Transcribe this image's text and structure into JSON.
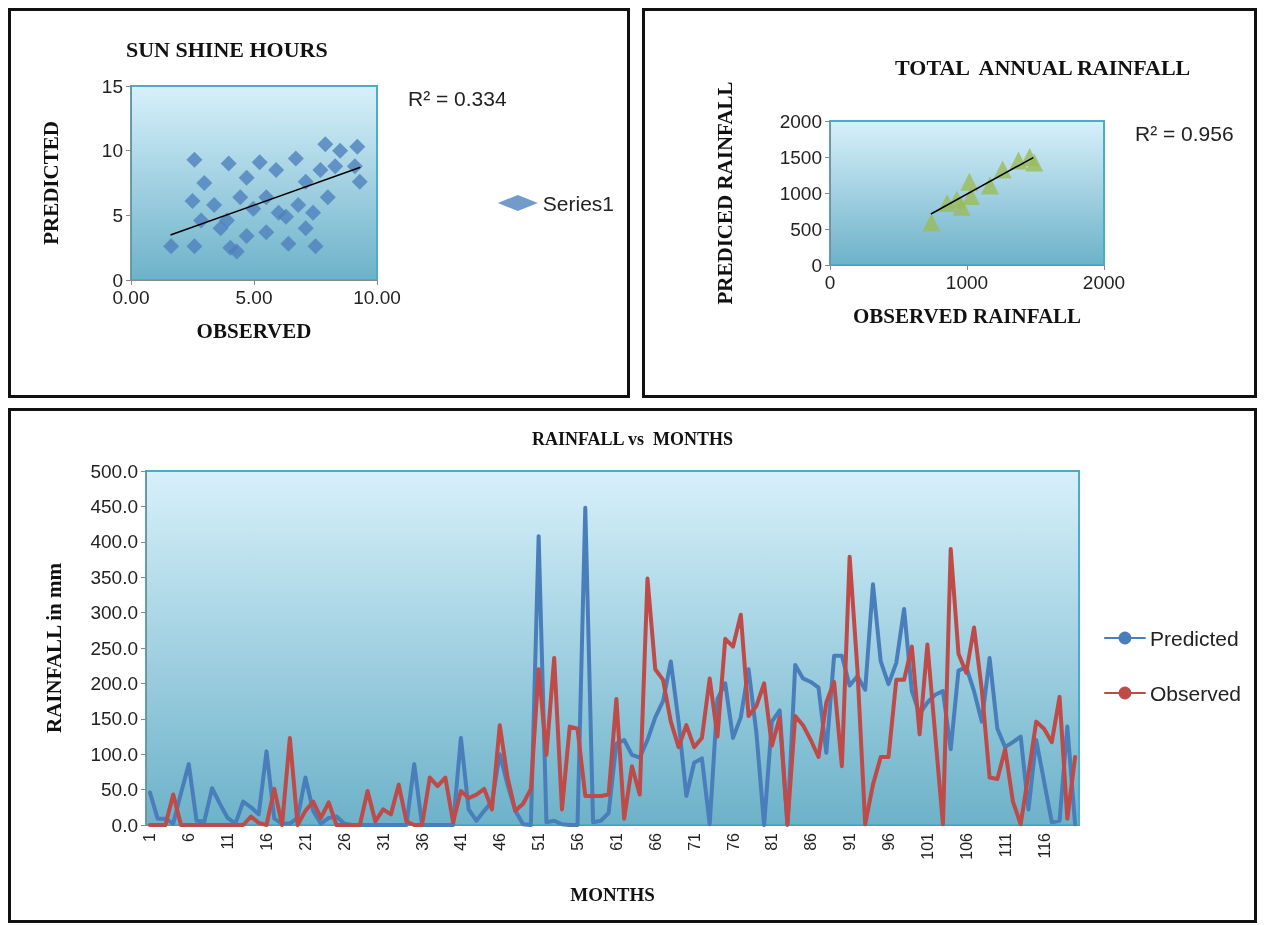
{
  "chart_data": [
    {
      "type": "scatter",
      "title": "SUN SHINE HOURS",
      "xlabel": "OBSERVED",
      "ylabel": "PREDICTED",
      "marker": "diamond",
      "legend": "right",
      "annotations": [
        "R² = 0.334"
      ],
      "xlim": [
        0,
        10
      ],
      "xticks": [
        {
          "value": 0,
          "label": "0.00"
        },
        {
          "value": 5,
          "label": "5.00"
        },
        {
          "value": 10,
          "label": "10.00"
        }
      ],
      "ylim": [
        0,
        15
      ],
      "yticks": [
        0,
        5,
        10,
        15
      ],
      "series": [
        {
          "name": "Series1",
          "color": "#4f81bd",
          "x": [
            1.63,
            2.58,
            2.58,
            2.5,
            2.98,
            3.38,
            3.97,
            4.04,
            3.9,
            4.44,
            4.7,
            4.7,
            5.23,
            5.5,
            5.5,
            5.9,
            6.0,
            6.4,
            6.7,
            6.8,
            7.1,
            7.5,
            7.4,
            7.9,
            8.0,
            8.3,
            8.5,
            9.2,
            9.3,
            9.1,
            3.64,
            4.97,
            6.3,
            7.1,
            7.7,
            2.85,
            4.3
          ],
          "values": [
            2.6,
            9.3,
            2.6,
            6.1,
            7.5,
            5.8,
            9.0,
            2.5,
            4.6,
            6.4,
            7.9,
            3.4,
            9.1,
            3.7,
            6.4,
            8.5,
            5.2,
            2.8,
            9.4,
            5.8,
            7.6,
            2.6,
            5.2,
            10.5,
            6.4,
            8.8,
            10.0,
            10.3,
            7.6,
            8.8,
            4.0,
            5.5,
            4.9,
            4.0,
            8.5,
            4.6,
            2.2
          ]
        },
        {
          "type": "line",
          "marker": "none",
          "color": "#000000",
          "x": [
            1.63,
            9.3
          ],
          "values": [
            3.5,
            8.7
          ]
        }
      ]
    },
    {
      "type": "scatter",
      "title": "TOTAL  ANNUAL RAINFALL",
      "xlabel": "OBSERVED RAINFALL",
      "ylabel": "PREDICED RAINFALL",
      "marker": "triangle",
      "annotations": [
        "R² = 0.956"
      ],
      "xlim": [
        0,
        2000
      ],
      "xticks": [
        0,
        1000,
        2000
      ],
      "ylim": [
        0,
        2000
      ],
      "yticks": [
        0,
        500,
        1000,
        1500,
        2000
      ],
      "series": [
        {
          "color": "#9bbb59",
          "x": [
            740,
            855,
            925,
            1017,
            1029,
            1168,
            1260,
            1376,
            1457,
            1491,
            960
          ],
          "values": [
            590,
            860,
            910,
            1155,
            960,
            1105,
            1327,
            1450,
            1499,
            1425,
            810
          ]
        },
        {
          "type": "line",
          "marker": "none",
          "color": "#000000",
          "x": [
            740,
            1480
          ],
          "values": [
            712,
            1489
          ]
        }
      ]
    },
    {
      "type": "line",
      "title": "RAINFALL vs  MONTHS",
      "xlabel": "MONTHS",
      "ylabel": "RAINFALL in mm",
      "marker": "none",
      "legend": "right",
      "categories": [
        "1",
        null,
        null,
        null,
        null,
        "6",
        null,
        null,
        null,
        null,
        "11",
        null,
        null,
        null,
        null,
        "16",
        null,
        null,
        null,
        null,
        "21",
        null,
        null,
        null,
        null,
        "26",
        null,
        null,
        null,
        null,
        "31",
        null,
        null,
        null,
        null,
        "36",
        null,
        null,
        null,
        null,
        "41",
        null,
        null,
        null,
        null,
        "46",
        null,
        null,
        null,
        null,
        "51",
        null,
        null,
        null,
        null,
        "56",
        null,
        null,
        null,
        null,
        "61",
        null,
        null,
        null,
        null,
        "66",
        null,
        null,
        null,
        null,
        "71",
        null,
        null,
        null,
        null,
        "76",
        null,
        null,
        null,
        null,
        "81",
        null,
        null,
        null,
        null,
        "86",
        null,
        null,
        null,
        null,
        "91",
        null,
        null,
        null,
        null,
        "96",
        null,
        null,
        null,
        null,
        "101",
        null,
        null,
        null,
        null,
        "106",
        null,
        null,
        null,
        null,
        "111",
        null,
        null,
        null,
        null,
        "116",
        null,
        null,
        null,
        null
      ],
      "ylim": [
        0,
        500
      ],
      "yticks": [
        {
          "value": 0,
          "label": "0.0"
        },
        {
          "value": 50,
          "label": "50.0"
        },
        {
          "value": 100,
          "label": "100.0"
        },
        {
          "value": 150,
          "label": "150.0"
        },
        {
          "value": 200,
          "label": "200.0"
        },
        {
          "value": 250,
          "label": "250.0"
        },
        {
          "value": 300,
          "label": "300.0"
        },
        {
          "value": 350,
          "label": "350.0"
        },
        {
          "value": 400,
          "label": "400.0"
        },
        {
          "value": 450,
          "label": "450.0"
        },
        {
          "value": 500,
          "label": "500.0"
        }
      ],
      "series": [
        {
          "name": "Predicted",
          "color": "#4a7ebb",
          "values": [
            46,
            9,
            9,
            2,
            45,
            86,
            6,
            5,
            52,
            30,
            10,
            2,
            33,
            25,
            15,
            104,
            9,
            2,
            2,
            10,
            67,
            20,
            2,
            10,
            12,
            2,
            0,
            0,
            0,
            0,
            0,
            0,
            0,
            0,
            86,
            0,
            0,
            0,
            0,
            0,
            123,
            22,
            6,
            20,
            33,
            100,
            57,
            20,
            1,
            0,
            408,
            4,
            6,
            1,
            0,
            0,
            448,
            4,
            6,
            17,
            115,
            120,
            99,
            95,
            120,
            152,
            175,
            231,
            146,
            41,
            88,
            94,
            1,
            178,
            200,
            123,
            152,
            220,
            131,
            0,
            146,
            162,
            0,
            226,
            207,
            202,
            194,
            102,
            239,
            239,
            197,
            210,
            191,
            340,
            231,
            199,
            229,
            305,
            189,
            157,
            173,
            184,
            189,
            107,
            218,
            223,
            189,
            146,
            236,
            136,
            110,
            117,
            125,
            22,
            120,
            62,
            4,
            6,
            139,
            1
          ]
        },
        {
          "name": "Observed",
          "color": "#be4b48",
          "values": [
            0,
            0,
            0,
            43,
            0,
            0,
            0,
            0,
            0,
            0,
            0,
            0,
            0,
            12,
            3,
            0,
            51,
            0,
            123,
            0,
            20,
            33,
            10,
            32,
            0,
            0,
            0,
            0,
            48,
            5,
            22,
            15,
            57,
            5,
            0,
            0,
            67,
            55,
            67,
            4,
            48,
            38,
            43,
            51,
            22,
            141,
            67,
            20,
            30,
            51,
            220,
            99,
            236,
            22,
            139,
            136,
            41,
            41,
            41,
            43,
            178,
            9,
            83,
            43,
            348,
            220,
            205,
            146,
            110,
            141,
            110,
            123,
            207,
            125,
            263,
            252,
            297,
            154,
            168,
            200,
            112,
            152,
            1,
            154,
            141,
            120,
            96,
            173,
            202,
            83,
            379,
            220,
            1,
            57,
            96,
            96,
            205,
            205,
            252,
            128,
            255,
            128,
            1,
            390,
            242,
            215,
            279,
            191,
            67,
            65,
            107,
            33,
            1,
            72,
            146,
            136,
            117,
            181,
            9,
            96
          ]
        }
      ]
    }
  ]
}
